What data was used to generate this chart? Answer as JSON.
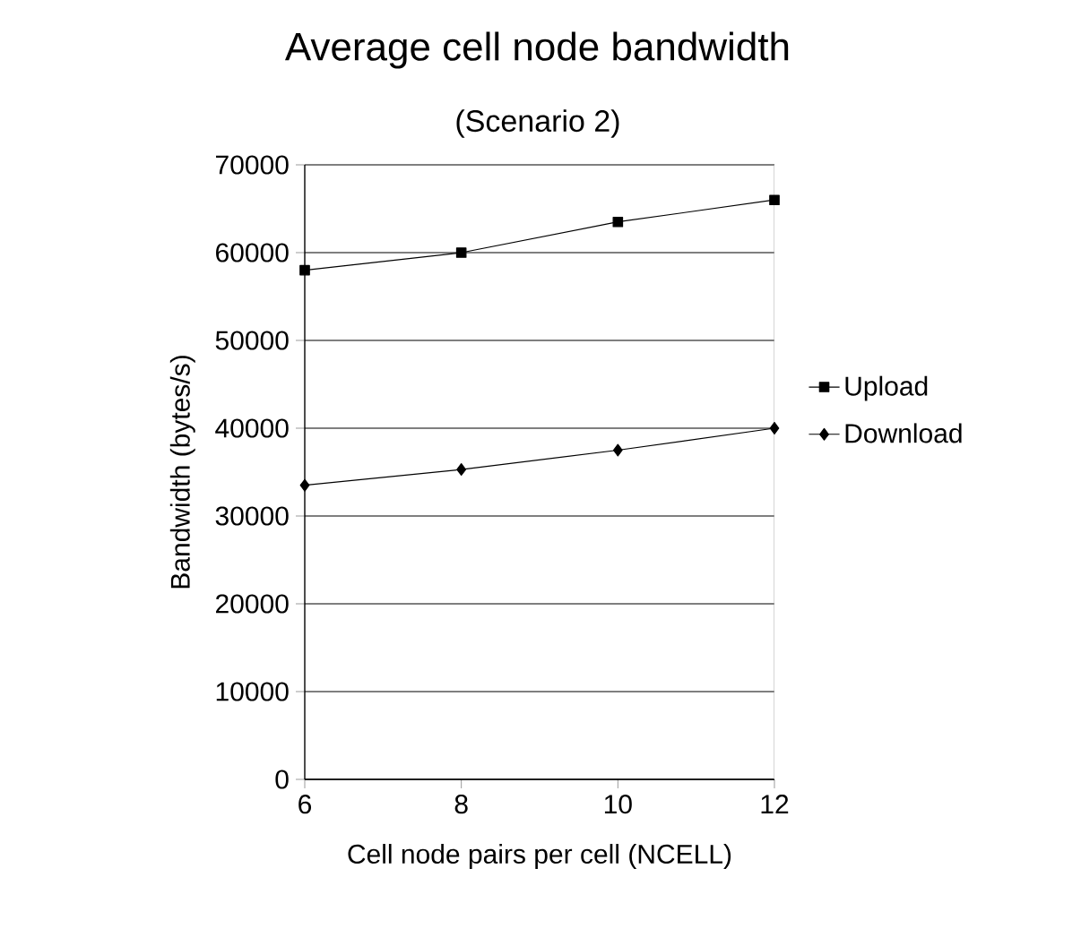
{
  "chart_data": {
    "type": "line",
    "title": "Average cell node bandwidth",
    "subtitle": "(Scenario 2)",
    "xlabel": "Cell node pairs per cell (NCELL)",
    "ylabel": "Bandwidth (bytes/s)",
    "categories": [
      "6",
      "8",
      "10",
      "12"
    ],
    "series": [
      {
        "name": "Upload",
        "color": "#000000",
        "marker": "square",
        "values": [
          58000,
          60000,
          63500,
          66000
        ]
      },
      {
        "name": "Download",
        "color": "#000000",
        "marker": "diamond",
        "values": [
          33500,
          35300,
          37500,
          40000
        ]
      }
    ],
    "ylim": [
      0,
      70000
    ],
    "yticks": [
      0,
      10000,
      20000,
      30000,
      40000,
      50000,
      60000,
      70000
    ],
    "grid": "y",
    "legend": "right",
    "line_style": "solid"
  }
}
